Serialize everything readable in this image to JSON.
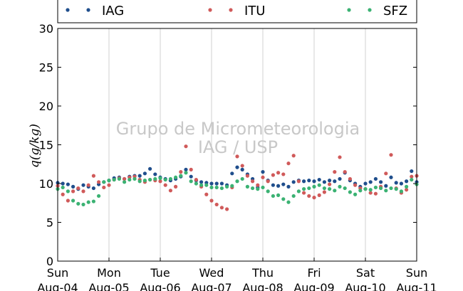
{
  "watermark": {
    "line1": "Grupo de Micrometeorologia",
    "line2": "IAG / USP"
  },
  "chart_data": {
    "type": "scatter",
    "title": "",
    "ylabel": "q(g/kg)",
    "xlabel": "",
    "ylim": [
      0,
      30
    ],
    "yticks": [
      0,
      5,
      10,
      15,
      20,
      25,
      30
    ],
    "xlim": [
      0,
      7
    ],
    "xticks": [
      {
        "x": 0,
        "day": "Sun",
        "date": "Aug-04"
      },
      {
        "x": 1,
        "day": "Mon",
        "date": "Aug-05"
      },
      {
        "x": 2,
        "day": "Tue",
        "date": "Aug-06"
      },
      {
        "x": 3,
        "day": "Wed",
        "date": "Aug-07"
      },
      {
        "x": 4,
        "day": "Thu",
        "date": "Aug-08"
      },
      {
        "x": 5,
        "day": "Fri",
        "date": "Aug-09"
      },
      {
        "x": 6,
        "day": "Sat",
        "date": "Aug-10"
      },
      {
        "x": 7,
        "day": "Sun",
        "date": "Aug-11"
      }
    ],
    "grid": "vertical",
    "legend": "top",
    "series": [
      {
        "name": "IAG",
        "color": "#1f4e8c",
        "x": [
          0,
          0.1,
          0.2,
          0.3,
          0.4,
          0.5,
          0.6,
          0.7,
          0.8,
          0.9,
          1.0,
          1.1,
          1.2,
          1.3,
          1.4,
          1.5,
          1.6,
          1.7,
          1.8,
          1.9,
          2.0,
          2.1,
          2.2,
          2.3,
          2.4,
          2.5,
          2.6,
          2.7,
          2.8,
          2.9,
          3.0,
          3.1,
          3.2,
          3.3,
          3.4,
          3.5,
          3.6,
          3.7,
          3.8,
          3.9,
          4.0,
          4.1,
          4.2,
          4.3,
          4.4,
          4.5,
          4.6,
          4.7,
          4.8,
          4.9,
          5.0,
          5.1,
          5.2,
          5.3,
          5.4,
          5.5,
          5.6,
          5.7,
          5.8,
          5.9,
          6.0,
          6.1,
          6.2,
          6.3,
          6.4,
          6.5,
          6.6,
          6.7,
          6.8,
          6.9,
          7.0
        ],
        "y": [
          10.1,
          10.0,
          9.9,
          9.6,
          9.3,
          9.8,
          9.6,
          9.4,
          9.9,
          10.2,
          10.4,
          10.7,
          10.8,
          10.6,
          10.9,
          11.0,
          11.0,
          11.3,
          11.9,
          11.2,
          10.8,
          10.6,
          10.4,
          10.6,
          10.9,
          11.8,
          10.9,
          10.4,
          10.2,
          10.1,
          10.0,
          10.0,
          10.0,
          9.8,
          11.3,
          12.1,
          11.8,
          11.2,
          10.6,
          9.5,
          11.5,
          10.4,
          9.8,
          9.7,
          9.9,
          9.6,
          10.2,
          10.4,
          10.3,
          10.4,
          10.3,
          10.5,
          10.2,
          10.4,
          10.3,
          10.6,
          11.4,
          10.4,
          10.0,
          9.6,
          10.0,
          10.2,
          10.6,
          10.2,
          9.7,
          10.8,
          10.1,
          10.0,
          10.3,
          11.6,
          10.2
        ]
      },
      {
        "name": "ITU",
        "color": "#d05a5a",
        "x": [
          0,
          0.1,
          0.2,
          0.3,
          0.4,
          0.5,
          0.6,
          0.7,
          0.8,
          0.9,
          1.0,
          1.1,
          1.2,
          1.3,
          1.4,
          1.5,
          1.6,
          1.7,
          1.8,
          1.9,
          2.0,
          2.1,
          2.2,
          2.3,
          2.4,
          2.5,
          2.6,
          2.7,
          2.8,
          2.9,
          3.0,
          3.1,
          3.2,
          3.3,
          3.4,
          3.5,
          3.6,
          3.7,
          3.8,
          3.9,
          4.0,
          4.1,
          4.2,
          4.3,
          4.4,
          4.5,
          4.6,
          4.7,
          4.8,
          4.9,
          5.0,
          5.1,
          5.2,
          5.3,
          5.4,
          5.5,
          5.6,
          5.7,
          5.8,
          5.9,
          6.0,
          6.1,
          6.2,
          6.3,
          6.4,
          6.5,
          6.6,
          6.7,
          6.8,
          6.9,
          7.0
        ],
        "y": [
          9.7,
          8.6,
          7.8,
          9.0,
          9.4,
          9.0,
          9.8,
          11.0,
          10.2,
          9.5,
          9.8,
          10.5,
          10.7,
          10.6,
          10.8,
          10.9,
          10.5,
          10.2,
          10.5,
          10.4,
          10.3,
          9.8,
          9.1,
          9.6,
          11.5,
          14.8,
          11.8,
          10.5,
          9.6,
          8.6,
          7.8,
          7.3,
          6.9,
          6.7,
          9.5,
          13.5,
          12.3,
          11.0,
          10.3,
          9.8,
          10.8,
          10.3,
          11.1,
          11.4,
          11.2,
          12.6,
          13.6,
          10.3,
          8.8,
          8.4,
          8.2,
          8.5,
          8.9,
          9.9,
          11.5,
          13.4,
          11.5,
          10.6,
          9.8,
          9.4,
          9.3,
          8.8,
          8.7,
          9.6,
          11.3,
          13.7,
          9.4,
          8.8,
          9.2,
          10.9,
          11.0
        ]
      },
      {
        "name": "SFZ",
        "color": "#3bb273",
        "x": [
          0,
          0.1,
          0.2,
          0.3,
          0.4,
          0.5,
          0.6,
          0.7,
          0.8,
          0.9,
          1.0,
          1.1,
          1.2,
          1.3,
          1.4,
          1.5,
          1.6,
          1.7,
          1.8,
          1.9,
          2.0,
          2.1,
          2.2,
          2.3,
          2.4,
          2.5,
          2.6,
          2.7,
          2.8,
          2.9,
          3.0,
          3.1,
          3.2,
          3.3,
          3.4,
          3.5,
          3.6,
          3.7,
          3.8,
          3.9,
          4.0,
          4.1,
          4.2,
          4.3,
          4.4,
          4.5,
          4.6,
          4.7,
          4.8,
          4.9,
          5.0,
          5.1,
          5.2,
          5.3,
          5.4,
          5.5,
          5.6,
          5.7,
          5.8,
          5.9,
          6.0,
          6.1,
          6.2,
          6.3,
          6.4,
          6.5,
          6.6,
          6.7,
          6.8,
          6.9,
          7.0
        ],
        "y": [
          9.3,
          9.5,
          9.0,
          7.8,
          7.4,
          7.3,
          7.6,
          7.7,
          8.4,
          10.2,
          10.4,
          10.5,
          10.6,
          10.2,
          10.5,
          10.6,
          10.3,
          10.4,
          10.5,
          10.6,
          10.7,
          10.5,
          10.6,
          10.8,
          11.0,
          11.4,
          10.3,
          10.0,
          9.8,
          9.8,
          9.5,
          9.5,
          9.4,
          9.6,
          9.7,
          10.3,
          10.6,
          9.6,
          9.4,
          9.3,
          9.5,
          9.0,
          8.4,
          8.5,
          8.0,
          7.6,
          8.4,
          9.0,
          9.3,
          9.4,
          9.6,
          9.8,
          9.4,
          9.3,
          9.1,
          9.6,
          9.4,
          8.9,
          8.6,
          9.1,
          9.3,
          9.2,
          9.5,
          9.4,
          9.1,
          9.4,
          9.3,
          9.0,
          9.6,
          10.5,
          9.9
        ]
      }
    ]
  }
}
